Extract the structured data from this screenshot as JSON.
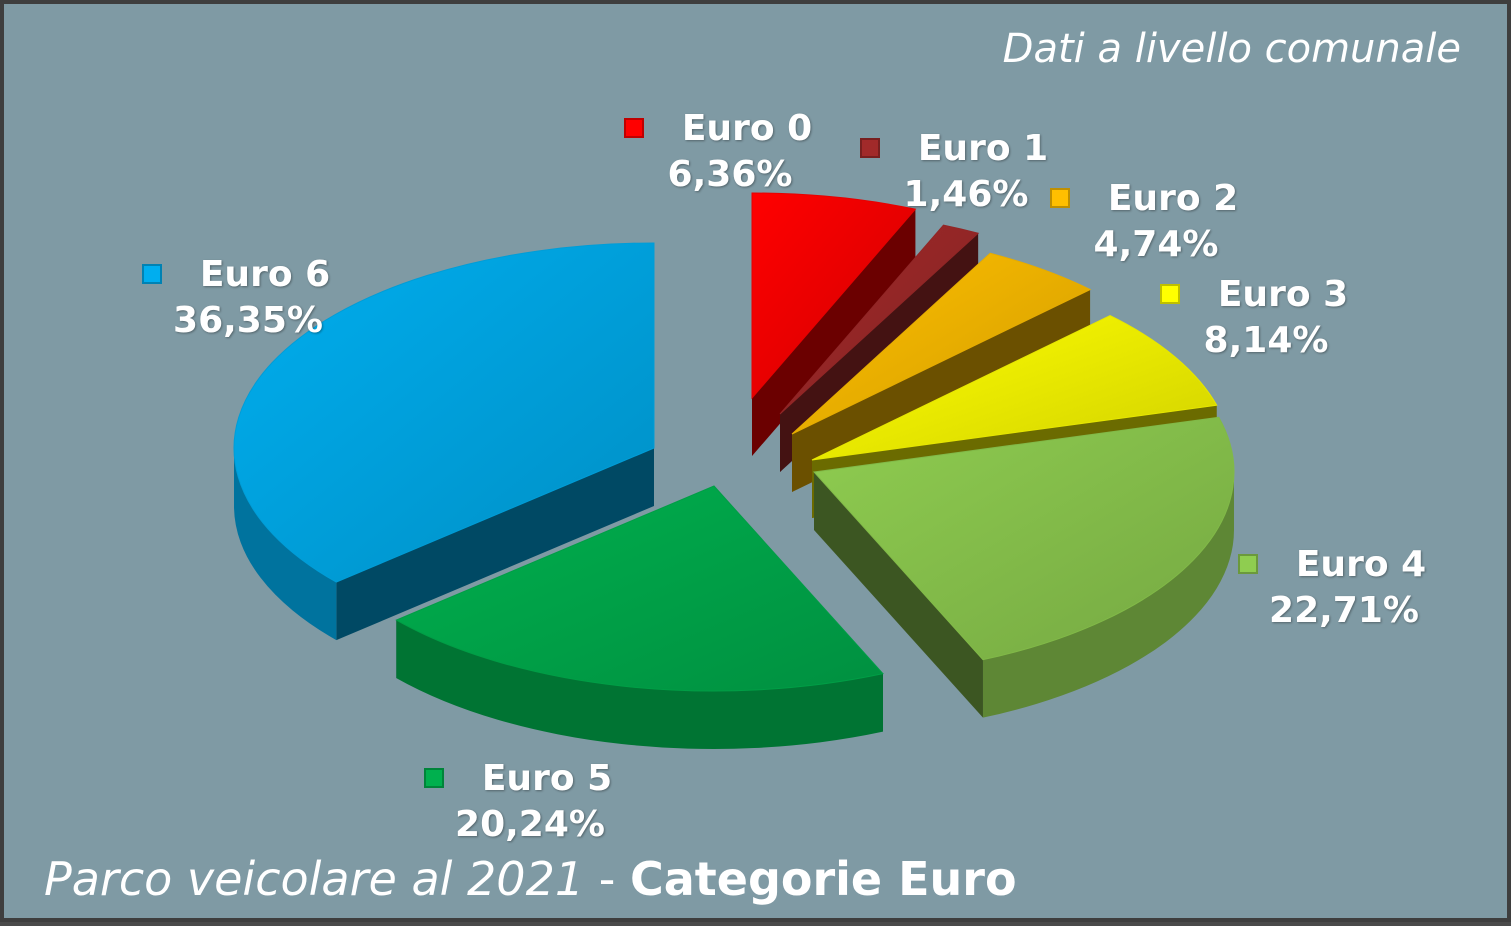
{
  "chart_data": {
    "type": "pie",
    "title_prefix": "Parco veicolare al 2021",
    "title_separator": " - ",
    "title_main": "Categorie Euro",
    "subtitle": "Dati a livello comunale",
    "slices": [
      {
        "label": "Euro 0",
        "value": 6.36,
        "value_label": "6,36%",
        "color": "#ff0000"
      },
      {
        "label": "Euro 1",
        "value": 1.46,
        "value_label": "1,46%",
        "color": "#a12a2a"
      },
      {
        "label": "Euro 2",
        "value": 4.74,
        "value_label": "4,74%",
        "color": "#ffbf00"
      },
      {
        "label": "Euro 3",
        "value": 8.14,
        "value_label": "8,14%",
        "color": "#ffff00"
      },
      {
        "label": "Euro 4",
        "value": 22.71,
        "value_label": "22,71%",
        "color": "#8fcd50"
      },
      {
        "label": "Euro 5",
        "value": 20.24,
        "value_label": "20,24%",
        "color": "#00b04e"
      },
      {
        "label": "Euro 6",
        "value": 36.35,
        "value_label": "36,35%",
        "color": "#00aeef"
      }
    ],
    "style": "3d-exploded",
    "legend": "labels next to slices"
  }
}
